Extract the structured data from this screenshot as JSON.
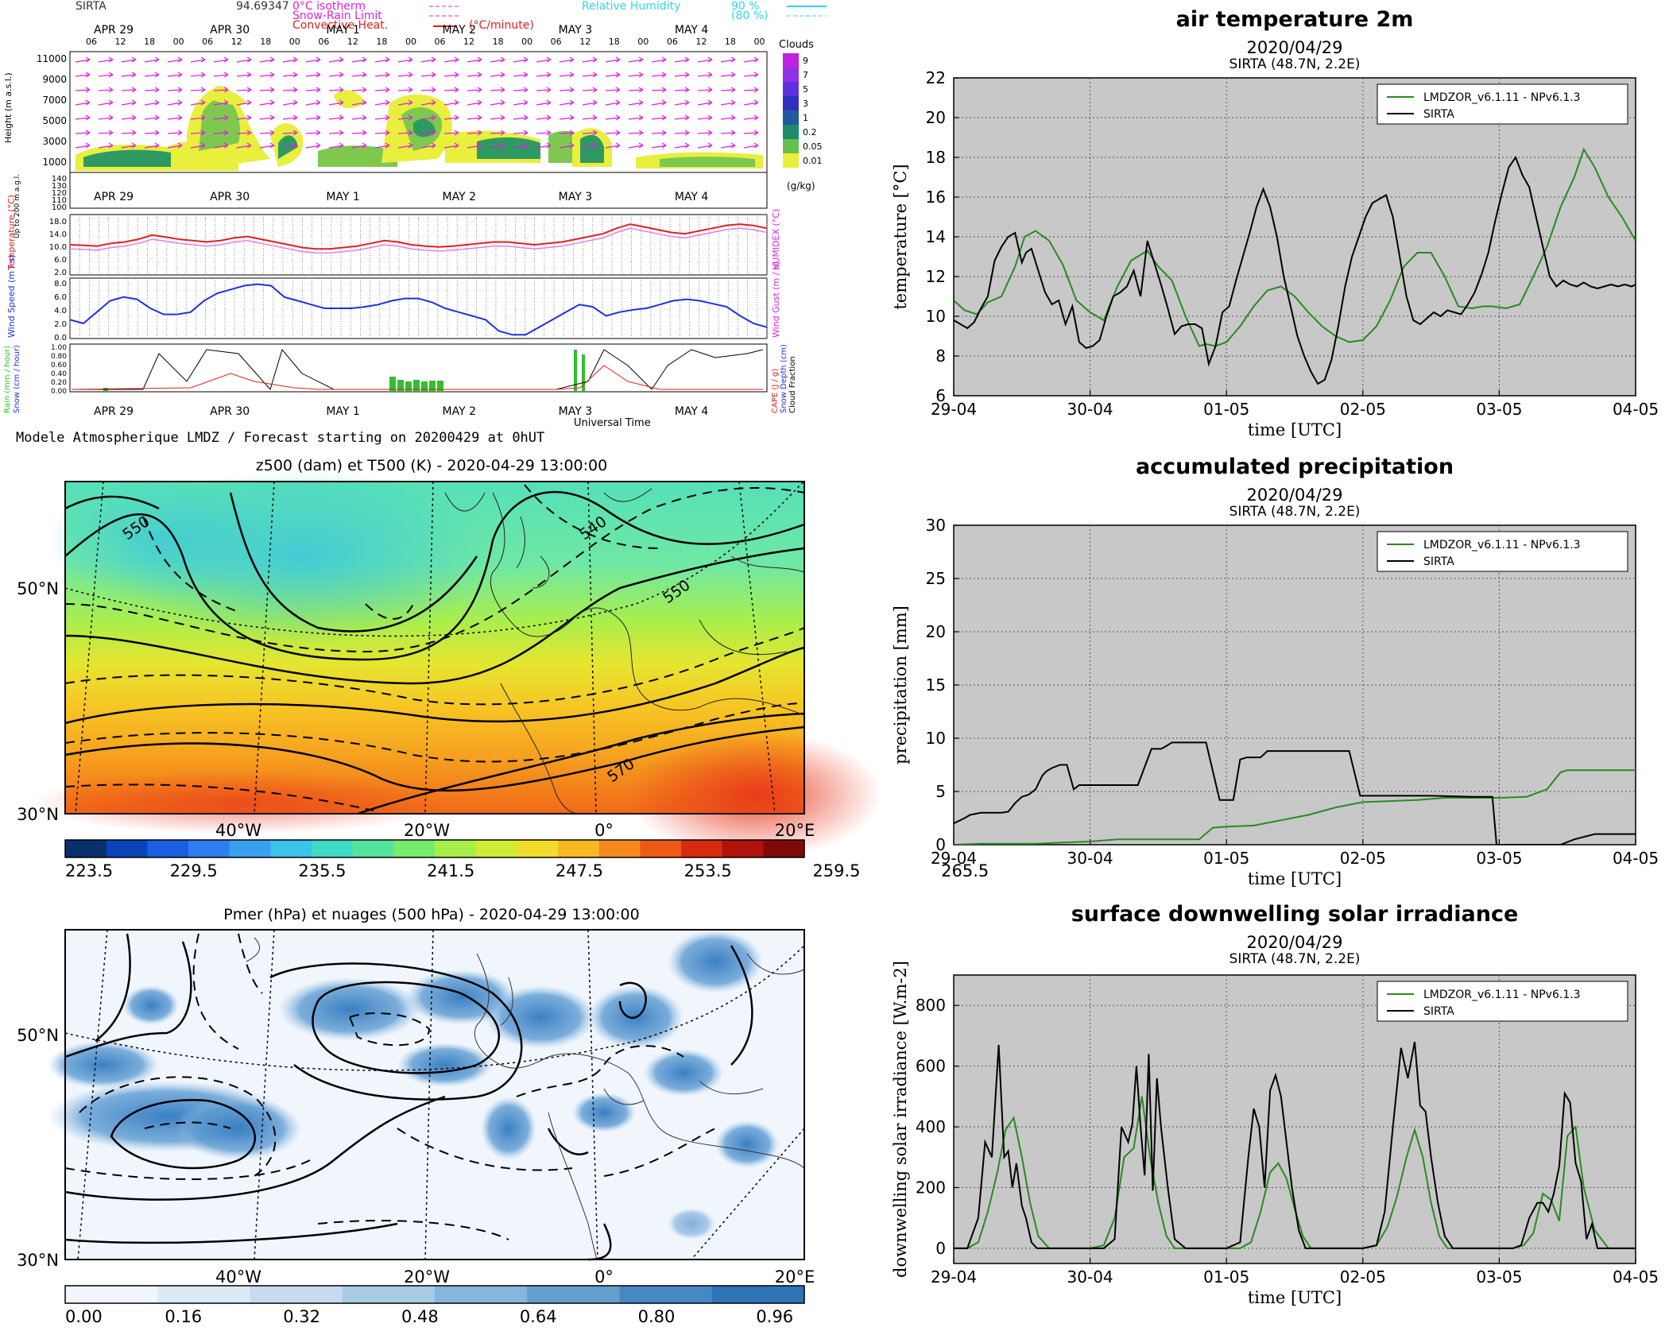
{
  "meteogram": {
    "station": "SIRTA",
    "station_value": "94.69347",
    "legend": {
      "isotherm": "0°C isotherm",
      "snow_rain": "Snow-Rain Limit",
      "convective": "Convective Heat.",
      "convective_unit": "(°C/minute)",
      "rh_label": "Relative Humidity",
      "rh_90": "90 %",
      "rh_80": "(80 %)"
    },
    "days": [
      "APR 29",
      "APR 30",
      "MAY  1",
      "MAY  2",
      "MAY  3",
      "MAY  4"
    ],
    "hours": [
      "06",
      "12",
      "18",
      "00"
    ],
    "clouds_title": "Clouds",
    "clouds_unit": "(g/kg)",
    "clouds_levels": [
      "9",
      "7",
      "5",
      "3",
      "1",
      "0.2",
      "0.05",
      "0.01"
    ],
    "height_label": "Height (m a.s.l.)",
    "height_low_label": "Up to 200 m a.g.l.",
    "height_ticks": [
      "11000",
      "9000",
      "7000",
      "5000",
      "3000",
      "1000"
    ],
    "low_ticks": [
      "140",
      "130",
      "120",
      "110",
      "100"
    ],
    "temp_label": "Temperature (°C)",
    "humidex_label": "HUMIDEX (°C)",
    "temp_ticks": [
      "18.0",
      "14.0",
      "10.0",
      "6.0",
      "2.0"
    ],
    "wind_label": "Wind Speed (m / s)",
    "gust_label": "Wind Gust (m / s)",
    "wind_ticks": [
      "8.0",
      "6.0",
      "4.0",
      "2.0",
      "0.0"
    ],
    "rain_label": "Rain (mm / hour)",
    "snow_label": "Snow (cm / hour)",
    "cape_label": "CAPE (J / g)",
    "snowdepth_label": "Snow Depth (cm)",
    "cloudfrac_label": "Cloud Fraction",
    "precip_ticks": [
      "1.00",
      "0.80",
      "0.60",
      "0.40",
      "0.20",
      "0.00"
    ],
    "universal_time": "Universal Time",
    "footer": "Modele Atmospherique LMDZ / Forecast starting on 20200429 at 0hUT"
  },
  "map1": {
    "title": "z500 (dam) et T500 (K) - 2020-04-29 13:00:00",
    "lat_labels": [
      "50°N",
      "30°N"
    ],
    "lon_labels": [
      "40°W",
      "20°W",
      "0°",
      "20°E"
    ],
    "contour_labels": [
      "550",
      "540",
      "550",
      "570"
    ],
    "colorbar_ticks": [
      "223.5",
      "229.5",
      "235.5",
      "241.5",
      "247.5",
      "253.5",
      "259.5",
      "265.5"
    ],
    "colorbar_colors": [
      "#08306b",
      "#0a44b8",
      "#1a5fe0",
      "#2e7fee",
      "#3aa0f0",
      "#3bc4e8",
      "#40d9c4",
      "#55e49c",
      "#78ea6e",
      "#a8ee4a",
      "#d2ec36",
      "#f1dc2a",
      "#f7b822",
      "#f58a1c",
      "#ee5a16",
      "#d82a10",
      "#b0120c",
      "#800a08"
    ]
  },
  "map2": {
    "title": "Pmer (hPa) et nuages (500 hPa) - 2020-04-29 13:00:00",
    "lat_labels": [
      "50°N",
      "30°N"
    ],
    "lon_labels": [
      "40°W",
      "20°W",
      "0°",
      "20°E"
    ],
    "colorbar_ticks": [
      "0.00",
      "0.16",
      "0.32",
      "0.48",
      "0.64",
      "0.80",
      "0.96"
    ],
    "colorbar_colors": [
      "#f0f6fc",
      "#dceaf6",
      "#c6dbef",
      "#a8cbe6",
      "#85b6dc",
      "#649fd0",
      "#4588c4",
      "#2e74b8"
    ]
  },
  "panel_common": {
    "date": "2020/04/29",
    "site": "SIRTA (48.7N, 2.2E)",
    "xlabel": "time [UTC]",
    "xticks": [
      "29-04",
      "30-04",
      "01-05",
      "02-05",
      "03-05",
      "04-05"
    ],
    "series_model": "LMDZOR_v6.1.11 - NPv6.1.3",
    "series_obs": "SIRTA",
    "model_color": "#2a8a20",
    "obs_color": "#000000"
  },
  "chart_data": [
    {
      "type": "line",
      "title": "air temperature 2m",
      "xlabel": "time [UTC]",
      "ylabel": "temperature [°C]",
      "ylim": [
        6,
        22
      ],
      "yticks": [
        6,
        8,
        10,
        12,
        14,
        16,
        18,
        20,
        22
      ],
      "xlim": [
        0,
        5
      ],
      "grid": true,
      "legend": "top-right",
      "series": [
        {
          "name": "LMDZOR_v6.1.11 - NPv6.1.3",
          "color": "#2a8a20",
          "x": [
            0,
            0.08,
            0.17,
            0.25,
            0.35,
            0.45,
            0.52,
            0.6,
            0.7,
            0.8,
            0.9,
            1.0,
            1.1,
            1.2,
            1.3,
            1.42,
            1.5,
            1.6,
            1.7,
            1.8,
            1.85,
            1.92,
            2.0,
            2.1,
            2.2,
            2.3,
            2.4,
            2.5,
            2.6,
            2.7,
            2.8,
            2.9,
            3.0,
            3.1,
            3.2,
            3.3,
            3.4,
            3.5,
            3.6,
            3.7,
            3.8,
            3.88,
            3.95,
            4.05,
            4.15,
            4.25,
            4.35,
            4.45,
            4.55,
            4.62,
            4.7,
            4.8,
            4.9,
            5.0
          ],
          "y": [
            10.8,
            10.3,
            10.1,
            10.7,
            11.0,
            12.5,
            14.0,
            14.3,
            13.8,
            12.6,
            10.8,
            10.2,
            9.8,
            11.5,
            12.8,
            13.3,
            12.5,
            11.8,
            10.0,
            8.5,
            8.6,
            8.5,
            8.7,
            9.5,
            10.5,
            11.3,
            11.5,
            11.0,
            10.2,
            9.5,
            9.0,
            8.7,
            8.8,
            9.5,
            10.8,
            12.5,
            13.2,
            13.2,
            12.0,
            10.5,
            10.4,
            10.5,
            10.5,
            10.4,
            10.6,
            12.0,
            13.5,
            15.5,
            17.0,
            18.4,
            17.5,
            16.0,
            15.0,
            13.8
          ]
        },
        {
          "name": "SIRTA",
          "color": "#000000",
          "x": [
            0,
            0.05,
            0.1,
            0.15,
            0.2,
            0.25,
            0.3,
            0.35,
            0.4,
            0.45,
            0.5,
            0.53,
            0.57,
            0.62,
            0.67,
            0.72,
            0.77,
            0.82,
            0.87,
            0.92,
            0.97,
            1.02,
            1.07,
            1.12,
            1.17,
            1.22,
            1.27,
            1.32,
            1.37,
            1.42,
            1.47,
            1.52,
            1.57,
            1.62,
            1.67,
            1.72,
            1.77,
            1.82,
            1.87,
            1.92,
            1.97,
            2.02,
            2.07,
            2.12,
            2.17,
            2.22,
            2.27,
            2.32,
            2.37,
            2.42,
            2.47,
            2.52,
            2.57,
            2.62,
            2.67,
            2.72,
            2.77,
            2.82,
            2.87,
            2.92,
            2.97,
            3.02,
            3.07,
            3.12,
            3.17,
            3.22,
            3.27,
            3.32,
            3.37,
            3.42,
            3.47,
            3.52,
            3.57,
            3.62,
            3.67,
            3.72,
            3.77,
            3.82,
            3.87,
            3.92,
            3.97,
            4.02,
            4.07,
            4.12,
            4.17,
            4.22,
            4.27,
            4.32,
            4.37,
            4.42,
            4.47,
            4.52,
            4.57,
            4.62,
            4.67,
            4.72,
            4.77,
            4.82,
            4.87,
            4.92,
            4.97,
            5.0
          ],
          "y": [
            9.8,
            9.6,
            9.4,
            9.7,
            10.4,
            11.0,
            12.8,
            13.5,
            14.0,
            14.2,
            12.7,
            13.2,
            13.4,
            12.3,
            11.2,
            10.6,
            10.8,
            9.6,
            10.5,
            8.7,
            8.4,
            8.5,
            8.8,
            10.0,
            11.0,
            11.2,
            11.5,
            12.3,
            11.0,
            13.8,
            12.7,
            11.6,
            10.4,
            9.1,
            9.5,
            9.6,
            9.6,
            9.4,
            7.6,
            8.5,
            10.2,
            10.5,
            11.8,
            13.0,
            14.2,
            15.5,
            16.4,
            15.5,
            14.0,
            12.0,
            10.5,
            9.0,
            8.0,
            7.2,
            6.6,
            6.8,
            7.8,
            9.5,
            11.5,
            13.0,
            14.0,
            15.0,
            15.7,
            15.9,
            16.1,
            15.0,
            13.0,
            11.0,
            9.8,
            9.6,
            9.9,
            10.2,
            10.0,
            10.3,
            10.2,
            10.1,
            10.6,
            11.2,
            12.1,
            13.2,
            14.8,
            16.2,
            17.5,
            18.0,
            17.1,
            16.5,
            15.0,
            13.5,
            12.0,
            11.5,
            11.8,
            11.6,
            11.5,
            11.7,
            11.5,
            11.4,
            11.5,
            11.6,
            11.5,
            11.6,
            11.5,
            11.6
          ]
        }
      ]
    },
    {
      "type": "line",
      "title": "accumulated precipitation",
      "xlabel": "time [UTC]",
      "ylabel": "precipitation [mm]",
      "ylim": [
        0,
        30
      ],
      "yticks": [
        0,
        5,
        10,
        15,
        20,
        25,
        30
      ],
      "xlim": [
        0,
        5
      ],
      "grid": true,
      "legend": "top-right",
      "series": [
        {
          "name": "LMDZOR_v6.1.11 - NPv6.1.3",
          "color": "#2a8a20",
          "x": [
            0,
            0.2,
            0.4,
            0.6,
            0.8,
            1.0,
            1.2,
            1.4,
            1.6,
            1.8,
            1.9,
            2.0,
            2.2,
            2.4,
            2.6,
            2.8,
            3.0,
            3.2,
            3.4,
            3.6,
            3.8,
            3.95,
            4.0,
            4.2,
            4.35,
            4.45,
            4.5,
            4.7,
            5.0
          ],
          "y": [
            0,
            0.1,
            0.1,
            0.1,
            0.2,
            0.3,
            0.5,
            0.5,
            0.5,
            0.5,
            1.6,
            1.7,
            1.8,
            2.3,
            2.8,
            3.5,
            4.0,
            4.1,
            4.2,
            4.4,
            4.4,
            4.4,
            4.4,
            4.5,
            5.2,
            6.8,
            7.0,
            7.0,
            7.0
          ]
        },
        {
          "name": "SIRTA",
          "color": "#000000",
          "x": [
            0,
            0.08,
            0.12,
            0.2,
            0.28,
            0.35,
            0.4,
            0.45,
            0.5,
            0.55,
            0.6,
            0.65,
            0.68,
            0.72,
            0.78,
            0.83,
            0.88,
            0.92,
            0.98,
            1.05,
            1.1,
            1.15,
            1.2,
            1.28,
            1.35,
            1.45,
            1.52,
            1.55,
            1.6,
            1.65,
            1.72,
            1.78,
            1.85,
            1.95,
            2.0,
            2.05,
            2.1,
            2.15,
            2.2,
            2.25,
            2.3,
            2.5,
            2.7,
            2.9,
            2.98,
            3.0,
            3.2,
            3.5,
            3.8,
            3.95,
            3.98,
            4.0,
            4.1,
            4.3,
            4.45,
            4.55,
            4.7,
            5.0
          ],
          "y": [
            2.0,
            2.5,
            2.8,
            3.0,
            3.0,
            3.0,
            3.1,
            3.9,
            4.5,
            4.7,
            5.2,
            6.5,
            6.9,
            7.2,
            7.5,
            7.5,
            5.2,
            5.6,
            5.6,
            5.6,
            5.6,
            5.6,
            5.6,
            5.6,
            5.6,
            9.0,
            9.0,
            9.2,
            9.6,
            9.6,
            9.6,
            9.6,
            9.6,
            4.2,
            4.2,
            4.2,
            8.0,
            8.2,
            8.2,
            8.2,
            8.8,
            8.8,
            8.8,
            8.8,
            4.6,
            4.6,
            4.6,
            4.6,
            4.5,
            4.5,
            0.0,
            0.0,
            0.0,
            0.0,
            0.0,
            0.5,
            1.0,
            1.0
          ]
        }
      ]
    },
    {
      "type": "line",
      "title": "surface downwelling solar irradiance",
      "xlabel": "time [UTC]",
      "ylabel": "downwelling solar irradiance [W.m-2]",
      "ylim": [
        -50,
        900
      ],
      "yticks": [
        0,
        200,
        400,
        600,
        800
      ],
      "xlim": [
        0,
        5
      ],
      "grid": true,
      "legend": "top-right",
      "series": [
        {
          "name": "LMDZOR_v6.1.11 - NPv6.1.3",
          "color": "#2a8a20",
          "x": [
            0,
            0.1,
            0.18,
            0.25,
            0.32,
            0.38,
            0.44,
            0.5,
            0.56,
            0.62,
            0.7,
            0.8,
            0.9,
            1.0,
            1.1,
            1.18,
            1.25,
            1.32,
            1.38,
            1.44,
            1.5,
            1.56,
            1.62,
            1.7,
            1.8,
            1.9,
            2.0,
            2.1,
            2.18,
            2.25,
            2.32,
            2.38,
            2.44,
            2.5,
            2.56,
            2.62,
            2.7,
            2.8,
            2.9,
            3.0,
            3.1,
            3.18,
            3.25,
            3.32,
            3.38,
            3.44,
            3.5,
            3.56,
            3.62,
            3.7,
            3.8,
            3.9,
            4.0,
            4.1,
            4.18,
            4.25,
            4.32,
            4.38,
            4.44,
            4.5,
            4.56,
            4.62,
            4.7,
            4.8,
            4.9,
            5.0
          ],
          "y": [
            0,
            0,
            20,
            120,
            250,
            390,
            430,
            300,
            150,
            40,
            0,
            0,
            0,
            0,
            10,
            100,
            300,
            330,
            500,
            300,
            150,
            40,
            0,
            0,
            0,
            0,
            0,
            0,
            20,
            120,
            250,
            280,
            230,
            130,
            40,
            0,
            0,
            0,
            0,
            0,
            10,
            70,
            170,
            300,
            390,
            300,
            150,
            40,
            0,
            0,
            0,
            0,
            0,
            0,
            10,
            50,
            180,
            160,
            90,
            370,
            400,
            200,
            60,
            0,
            0,
            0
          ]
        },
        {
          "name": "SIRTA",
          "color": "#000000",
          "x": [
            0,
            0.1,
            0.18,
            0.23,
            0.28,
            0.33,
            0.37,
            0.4,
            0.43,
            0.46,
            0.5,
            0.53,
            0.57,
            0.61,
            0.66,
            0.72,
            0.8,
            0.9,
            1.0,
            1.1,
            1.18,
            1.23,
            1.28,
            1.31,
            1.34,
            1.37,
            1.4,
            1.43,
            1.46,
            1.49,
            1.52,
            1.57,
            1.62,
            1.7,
            1.8,
            1.9,
            2.0,
            2.1,
            2.16,
            2.2,
            2.24,
            2.28,
            2.32,
            2.36,
            2.4,
            2.44,
            2.48,
            2.53,
            2.58,
            2.65,
            2.72,
            2.8,
            2.9,
            3.0,
            3.1,
            3.16,
            3.22,
            3.28,
            3.33,
            3.38,
            3.42,
            3.46,
            3.5,
            3.55,
            3.6,
            3.66,
            3.72,
            3.8,
            3.9,
            4.0,
            4.1,
            4.16,
            4.22,
            4.28,
            4.32,
            4.36,
            4.4,
            4.44,
            4.48,
            4.52,
            4.56,
            4.6,
            4.64,
            4.68,
            4.72,
            4.8,
            4.9,
            5.0
          ],
          "y": [
            0,
            0,
            100,
            350,
            300,
            670,
            300,
            320,
            200,
            280,
            140,
            100,
            20,
            0,
            0,
            0,
            0,
            0,
            0,
            0,
            30,
            400,
            350,
            410,
            600,
            400,
            240,
            640,
            190,
            560,
            400,
            200,
            30,
            0,
            0,
            0,
            0,
            20,
            300,
            460,
            400,
            200,
            520,
            570,
            500,
            350,
            200,
            60,
            0,
            0,
            0,
            0,
            0,
            0,
            10,
            120,
            400,
            660,
            560,
            680,
            470,
            450,
            300,
            150,
            40,
            0,
            0,
            0,
            0,
            0,
            0,
            10,
            100,
            150,
            150,
            120,
            180,
            270,
            510,
            480,
            280,
            220,
            30,
            80,
            0,
            0,
            0,
            0
          ]
        }
      ]
    }
  ]
}
